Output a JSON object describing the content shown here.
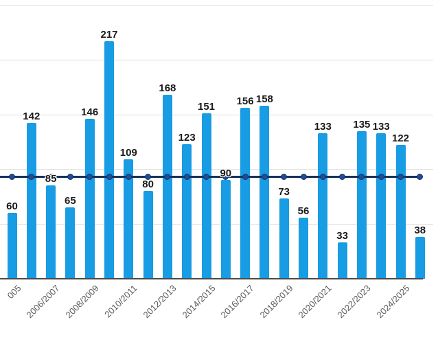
{
  "chart_data": {
    "type": "bar",
    "title": "",
    "legend": "none",
    "grid": "on",
    "ylim": [
      0,
      250
    ],
    "gridline_values": [
      50,
      100,
      150,
      200,
      250
    ],
    "series": [
      {
        "name": "season-values",
        "type": "bar",
        "data_labels": "shown",
        "values": [
          60,
          142,
          85,
          65,
          146,
          217,
          109,
          80,
          168,
          123,
          151,
          90,
          156,
          158,
          73,
          56,
          133,
          33,
          135,
          133,
          122,
          38
        ]
      },
      {
        "name": "reference-line",
        "type": "line",
        "markers": "circle-every-category",
        "constant_value": 93
      }
    ],
    "x_tick_labels": [
      {
        "bar_index": 0,
        "label": "005"
      },
      {
        "bar_index": 2,
        "label": "2006/2007"
      },
      {
        "bar_index": 4,
        "label": "2008/2009"
      },
      {
        "bar_index": 6,
        "label": "2010/2011"
      },
      {
        "bar_index": 8,
        "label": "2012/2013"
      },
      {
        "bar_index": 10,
        "label": "2014/2015"
      },
      {
        "bar_index": 12,
        "label": "2016/2017"
      },
      {
        "bar_index": 14,
        "label": "2018/2019"
      },
      {
        "bar_index": 16,
        "label": "2020/2021"
      },
      {
        "bar_index": 18,
        "label": "2022/2023"
      },
      {
        "bar_index": 20,
        "label": "2024/2025"
      }
    ],
    "colors": {
      "bar": "#189CE3",
      "reference_line": "#17325A",
      "marker": "#1D4E9B",
      "marker_border": "#16325A",
      "gridline": "#DCDCDC",
      "axis": "#4A4A4A",
      "value_label": "#1A1A1A",
      "tick_label": "#595959",
      "background": "#FFFFFF"
    }
  }
}
